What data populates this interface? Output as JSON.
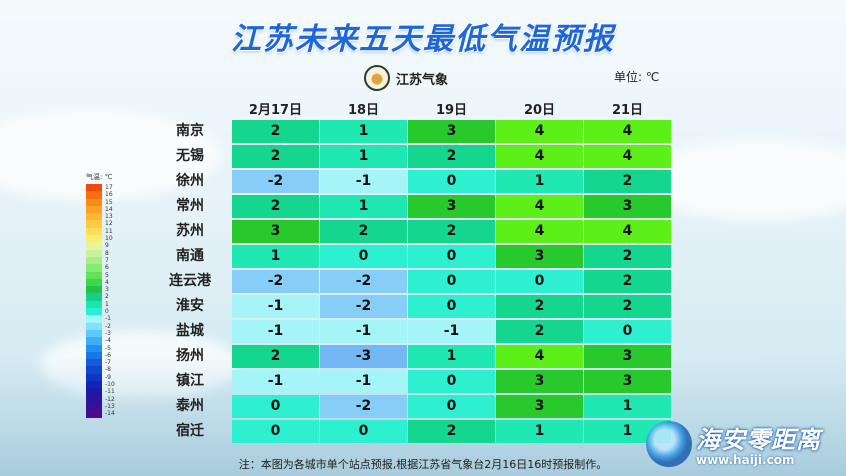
{
  "title": "江苏未来五天最低气温预报",
  "logo_text": "江苏气象",
  "unit_label": "单位: ℃",
  "legend_title": "气温: ℃",
  "legend": [
    {
      "label": "17",
      "color": "#f24a0e"
    },
    {
      "label": "16",
      "color": "#f66d12"
    },
    {
      "label": "15",
      "color": "#f98a19"
    },
    {
      "label": "14",
      "color": "#fba126"
    },
    {
      "label": "13",
      "color": "#fcb733"
    },
    {
      "label": "12",
      "color": "#fdca44"
    },
    {
      "label": "11",
      "color": "#fddd5a"
    },
    {
      "label": "10",
      "color": "#f9ee6e"
    },
    {
      "label": "9",
      "color": "#e6f59a"
    },
    {
      "label": "8",
      "color": "#c8f39a"
    },
    {
      "label": "7",
      "color": "#a6f08a"
    },
    {
      "label": "6",
      "color": "#85ec72"
    },
    {
      "label": "5",
      "color": "#5fe35a"
    },
    {
      "label": "4",
      "color": "#3fd648"
    },
    {
      "label": "3",
      "color": "#21c34a"
    },
    {
      "label": "2",
      "color": "#16cf8a"
    },
    {
      "label": "1",
      "color": "#1de3b0"
    },
    {
      "label": "0",
      "color": "#29f0d0"
    },
    {
      "label": "-1",
      "color": "#9ff6f6"
    },
    {
      "label": "-2",
      "color": "#7fe4fb"
    },
    {
      "label": "-3",
      "color": "#5cc9f7"
    },
    {
      "label": "-4",
      "color": "#3daff3"
    },
    {
      "label": "-5",
      "color": "#2591ee"
    },
    {
      "label": "-6",
      "color": "#1a75e6"
    },
    {
      "label": "-7",
      "color": "#145cdb"
    },
    {
      "label": "-8",
      "color": "#1147cf"
    },
    {
      "label": "-9",
      "color": "#0f35c2"
    },
    {
      "label": "-10",
      "color": "#1126b5"
    },
    {
      "label": "-11",
      "color": "#1b1aa6"
    },
    {
      "label": "-12",
      "color": "#2b139b"
    },
    {
      "label": "-13",
      "color": "#3a0f94"
    },
    {
      "label": "-14",
      "color": "#4a0c8e"
    }
  ],
  "dates": [
    "2月17日",
    "18日",
    "19日",
    "20日",
    "21日"
  ],
  "rows": [
    {
      "city": "南京",
      "values": [
        "2",
        "1",
        "3",
        "4",
        "4"
      ]
    },
    {
      "city": "无锡",
      "values": [
        "2",
        "1",
        "2",
        "4",
        "4"
      ]
    },
    {
      "city": "徐州",
      "values": [
        "-2",
        "-1",
        "0",
        "1",
        "2"
      ]
    },
    {
      "city": "常州",
      "values": [
        "2",
        "1",
        "3",
        "4",
        "3"
      ]
    },
    {
      "city": "苏州",
      "values": [
        "3",
        "2",
        "2",
        "4",
        "4"
      ]
    },
    {
      "city": "南通",
      "values": [
        "1",
        "0",
        "0",
        "3",
        "2"
      ]
    },
    {
      "city": "连云港",
      "values": [
        "-2",
        "-2",
        "0",
        "0",
        "2"
      ]
    },
    {
      "city": "淮安",
      "values": [
        "-1",
        "-2",
        "0",
        "2",
        "2"
      ]
    },
    {
      "city": "盐城",
      "values": [
        "-1",
        "-1",
        "-1",
        "2",
        "0"
      ]
    },
    {
      "city": "扬州",
      "values": [
        "2",
        "-3",
        "1",
        "4",
        "3"
      ]
    },
    {
      "city": "镇江",
      "values": [
        "-1",
        "-1",
        "0",
        "3",
        "3"
      ]
    },
    {
      "city": "泰州",
      "values": [
        "0",
        "-2",
        "0",
        "3",
        "1"
      ]
    },
    {
      "city": "宿迁",
      "values": [
        "0",
        "0",
        "2",
        "1",
        "1"
      ]
    }
  ],
  "cell_colors": {
    "4": "#5cf018",
    "3": "#27c92c",
    "2": "#14d68e",
    "1": "#1fe8b2",
    "0": "#2cf0d0",
    "-1": "#a4f4f8",
    "-2": "#86cdf7",
    "-3": "#74b8f5"
  },
  "note": "注：本图为各城市单个站点预报,根据江苏省气象台2月16日16时预报制作。",
  "watermark": {
    "name": "海安零距离",
    "url": "www.haiji.com"
  }
}
